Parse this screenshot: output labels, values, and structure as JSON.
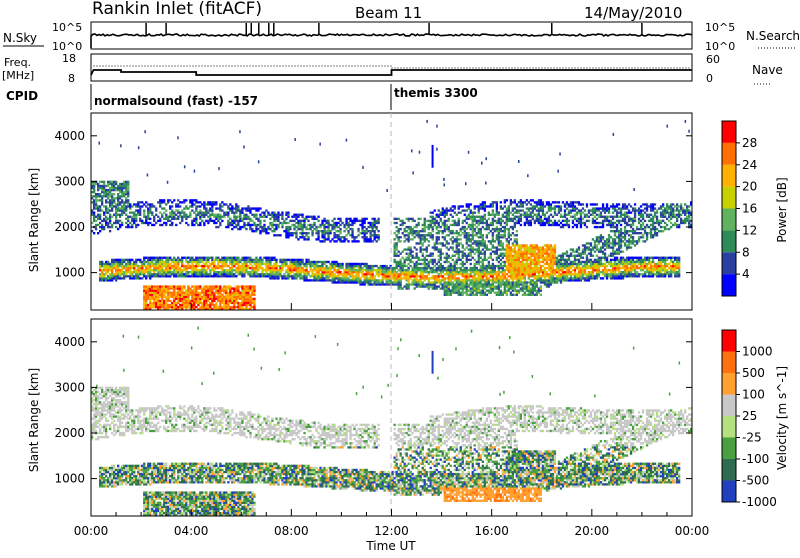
{
  "header": {
    "station": "Rankin Inlet (fitACF)",
    "beam": "Beam 11",
    "date": "14/May/2010"
  },
  "top_panels": {
    "nsky_label": "N.Sky",
    "nsky_ticks": [
      "10^5",
      "10^0"
    ],
    "nsearch_label": "N.Search",
    "nsearch_ticks": [
      "10^5",
      "10^0"
    ],
    "freq_label": "Freq.",
    "freq_unit": "[MHz]",
    "freq_ticks": [
      "18",
      "8"
    ],
    "nave_label": "Nave",
    "nave_ticks": [
      "60",
      "0"
    ],
    "cpid_label": "CPID",
    "cpid_modes": [
      {
        "name": "normalsound (fast) -157",
        "start_hour": 0
      },
      {
        "name": "themis 3300",
        "start_hour": 12
      }
    ]
  },
  "chart_data": [
    {
      "type": "heatmap",
      "name": "power",
      "ylabel": "Slant Range [km]",
      "yticks": [
        "4000",
        "3000",
        "2000",
        "1000"
      ],
      "ylim": [
        180,
        4500
      ],
      "xlim": [
        0,
        24
      ],
      "colorbar_label": "Power [dB]",
      "colorbar_ticks": [
        "28",
        "24",
        "20",
        "16",
        "12",
        "8",
        "4"
      ],
      "colorscale": [
        "#0000ff",
        "#2a3fa0",
        "#2e8b57",
        "#5fb35f",
        "#c8d000",
        "#ffb000",
        "#ff7000",
        "#ff0000"
      ]
    },
    {
      "type": "heatmap",
      "name": "velocity",
      "ylabel": "Slant Range [km]",
      "yticks": [
        "4000",
        "3000",
        "2000",
        "1000"
      ],
      "ylim": [
        180,
        4500
      ],
      "xlim": [
        0,
        24
      ],
      "xticks": [
        "00:00",
        "04:00",
        "08:00",
        "12:00",
        "16:00",
        "20:00",
        "00:00"
      ],
      "xlabel": "Time UT",
      "colorbar_label": "Velocity [m s^-1]",
      "colorbar_ticks": [
        "1000",
        "500",
        "100",
        "25",
        "-25",
        "-100",
        "-500",
        "-1000"
      ],
      "colorscale": [
        "#2040c0",
        "#2e6b50",
        "#48a040",
        "#b5e080",
        "#c8c8c8",
        "#ffa030",
        "#ff7010",
        "#ff0000"
      ]
    }
  ]
}
